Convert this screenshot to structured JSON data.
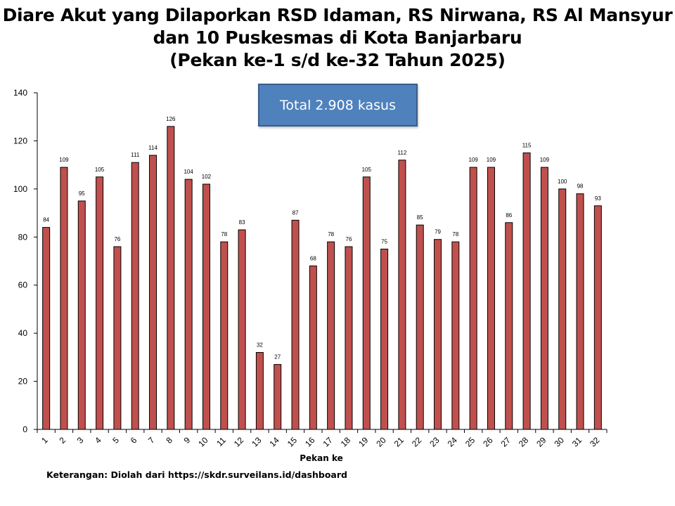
{
  "title": {
    "line1": "Diare Akut yang Dilaporkan RSD Idaman, RS Nirwana, RS Al Mansyur",
    "line2": "dan 10 Puskesmas di Kota Banjarbaru",
    "line3": "(Pekan ke-1 s/d ke-32 Tahun 2025)"
  },
  "total_box": "Total 2.908 kasus",
  "note": "Keterangan: Diolah dari https://skdr.surveilans.id/dashboard",
  "chart_data": {
    "type": "bar",
    "categories": [
      "1",
      "2",
      "3",
      "4",
      "5",
      "6",
      "7",
      "8",
      "9",
      "10",
      "11",
      "12",
      "13",
      "14",
      "15",
      "16",
      "17",
      "18",
      "19",
      "20",
      "21",
      "22",
      "23",
      "24",
      "25",
      "26",
      "27",
      "28",
      "29",
      "30",
      "31",
      "32"
    ],
    "values": [
      84,
      109,
      95,
      105,
      76,
      111,
      114,
      126,
      104,
      102,
      78,
      83,
      32,
      27,
      87,
      68,
      78,
      76,
      105,
      75,
      112,
      85,
      79,
      78,
      109,
      109,
      86,
      115,
      109,
      100,
      98,
      93
    ],
    "xlabel": "Pekan ke",
    "ylabel": "",
    "ylim": [
      0,
      140
    ],
    "yticks": [
      0,
      20,
      40,
      60,
      80,
      100,
      120,
      140
    ],
    "grid": false,
    "legend": "none",
    "bar_color": "#c0504d",
    "bar_stroke": "#000000"
  }
}
